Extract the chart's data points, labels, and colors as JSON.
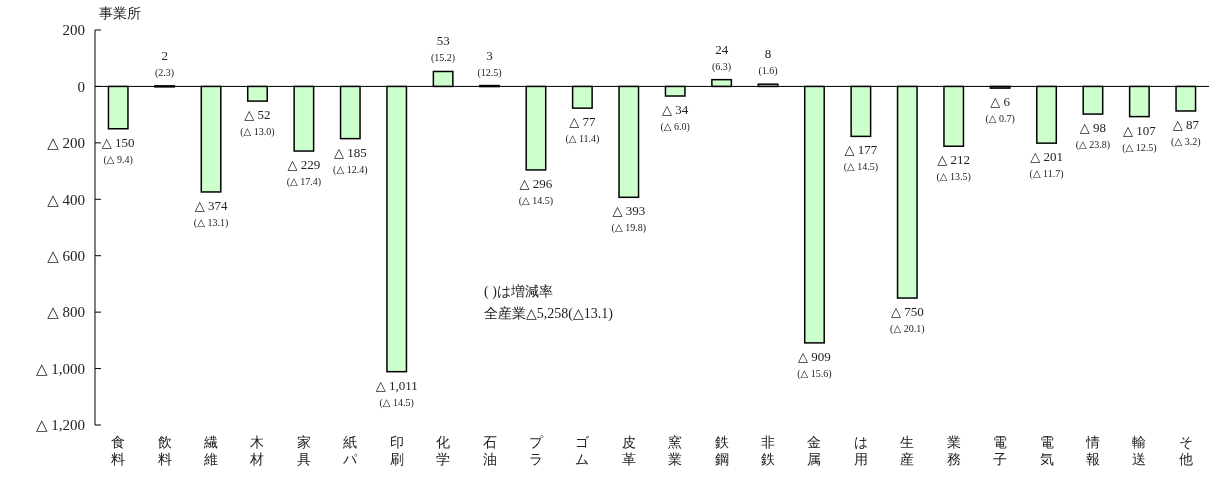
{
  "chart_data": {
    "type": "bar",
    "ylabel": "事業所",
    "categories": [
      "食料",
      "飲料",
      "繊維",
      "木材",
      "家具",
      "紙パ",
      "印刷",
      "化学",
      "石油",
      "プラ",
      "ゴム",
      "皮革",
      "窯業",
      "鉄鋼",
      "非鉄",
      "金属",
      "は用",
      "生産",
      "業務",
      "電子",
      "電気",
      "情報",
      "輸送",
      "そ他"
    ],
    "values": [
      -150,
      2,
      -374,
      -52,
      -229,
      -185,
      -1011,
      53,
      3,
      -296,
      -77,
      -393,
      -34,
      24,
      8,
      -909,
      -177,
      -750,
      -212,
      -6,
      -201,
      -98,
      -107,
      -87
    ],
    "value_labels": [
      "△ 150\n(△ 9.4)",
      "2\n(2.3)",
      "△ 374\n(△ 13.1)",
      "△ 52\n(△ 13.0)",
      "△ 229\n(△ 17.4)",
      "△ 185\n(△ 12.4)",
      "△ 1,011\n(△ 14.5)",
      "53\n(15.2)",
      "3\n(12.5)",
      "△ 296\n(△ 14.5)",
      "△ 77\n(△ 11.4)",
      "△ 393\n(△ 19.8)",
      "△ 34\n(△ 6.0)",
      "24\n(6.3)",
      "8\n(1.6)",
      "△ 909\n(△ 15.6)",
      "△ 177\n(△ 14.5)",
      "△ 750\n(△ 20.1)",
      "△ 212\n(△ 13.5)",
      "△ 6\n(△ 0.7)",
      "△ 201\n(△ 11.7)",
      "△ 98\n(△ 23.8)",
      "△ 107\n(△ 12.5)",
      "△ 87\n(△ 3.2)"
    ],
    "color": "#ccffcc",
    "ylim": [
      -1200,
      200
    ],
    "yticks": [
      200,
      0,
      {
        "value": -200,
        "label": "△ 200"
      },
      {
        "value": -400,
        "label": "△ 400"
      },
      {
        "value": -600,
        "label": "△ 600"
      },
      {
        "value": -800,
        "label": "△ 800"
      },
      {
        "value": -1000,
        "label": "△ 1,000"
      },
      {
        "value": -1200,
        "label": "△ 1,200"
      }
    ],
    "annotations": [
      "( )は増減率",
      "全産業△5,258(△13.1)"
    ]
  }
}
